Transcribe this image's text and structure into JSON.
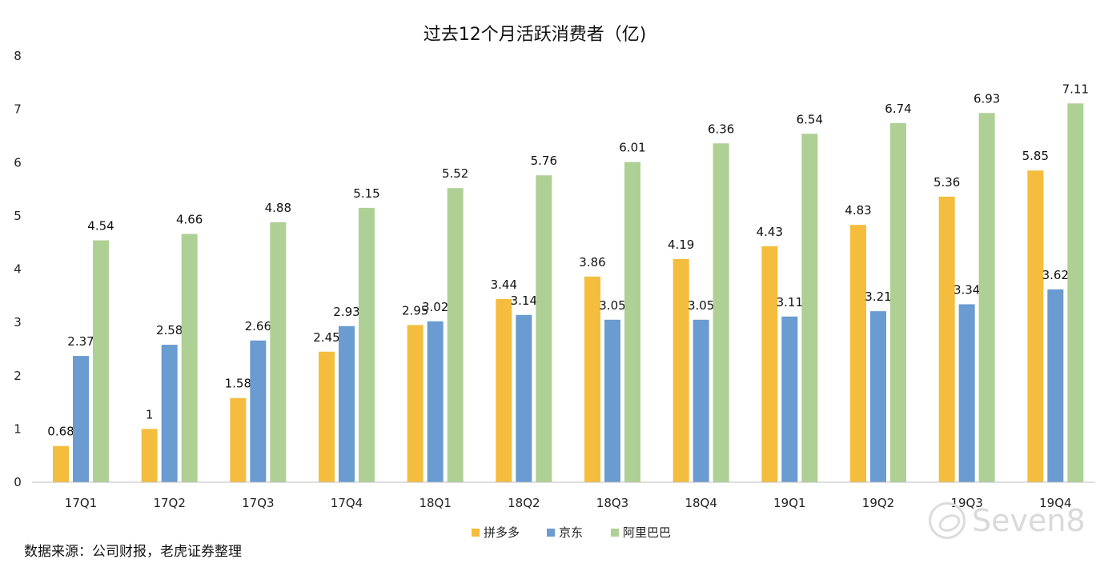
{
  "chart_data": {
    "type": "bar",
    "title": "过去12个月活跃消费者（亿)",
    "categories": [
      "17Q1",
      "17Q2",
      "17Q3",
      "17Q4",
      "18Q1",
      "18Q2",
      "18Q3",
      "18Q4",
      "19Q1",
      "19Q2",
      "19Q3",
      "19Q4"
    ],
    "series": [
      {
        "name": "拼多多",
        "color": "#F5BD3D",
        "values": [
          0.68,
          1,
          1.58,
          2.45,
          2.95,
          3.44,
          3.86,
          4.19,
          4.43,
          4.83,
          5.36,
          5.85
        ]
      },
      {
        "name": "京东",
        "color": "#6A9BD1",
        "values": [
          2.37,
          2.58,
          2.66,
          2.93,
          3.02,
          3.14,
          3.05,
          3.05,
          3.11,
          3.21,
          3.34,
          3.62
        ]
      },
      {
        "name": "阿里巴巴",
        "color": "#AED094",
        "values": [
          4.54,
          4.66,
          4.88,
          5.15,
          5.52,
          5.76,
          6.01,
          6.36,
          6.54,
          6.74,
          6.93,
          7.11
        ]
      }
    ],
    "ylim": [
      0,
      8
    ],
    "yticks": [
      0,
      1,
      2,
      3,
      4,
      5,
      6,
      7,
      8
    ],
    "legend_position": "bottom",
    "grid": false
  },
  "source": "数据来源：公司财报，老虎证券整理",
  "watermark": "Seven8"
}
